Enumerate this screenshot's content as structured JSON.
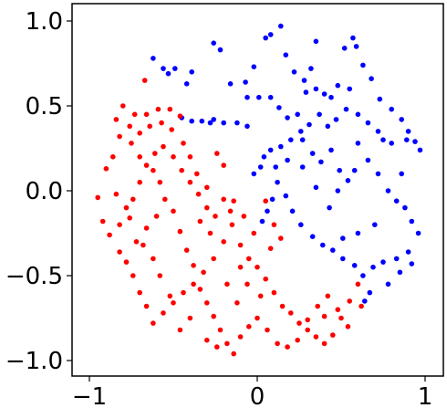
{
  "chart_data": {
    "type": "scatter",
    "title": "",
    "xlabel": "",
    "ylabel": "",
    "xlim": [
      -1.0,
      1.0
    ],
    "ylim": [
      -1.1,
      1.1
    ],
    "grid": false,
    "legend": "none",
    "x_ticks": [
      -1,
      0,
      1
    ],
    "x_tick_labels": [
      "−1",
      "0",
      "1"
    ],
    "y_ticks": [
      -1.0,
      -0.5,
      0.0,
      0.5,
      1.0
    ],
    "y_tick_labels": [
      "−1.0",
      "−0.5",
      "0.0",
      "0.5",
      "1.0"
    ],
    "series": [
      {
        "color": "#0000ff",
        "points": [
          [
            -0.62,
            0.78
          ],
          [
            -0.56,
            0.72
          ],
          [
            -0.53,
            0.69
          ],
          [
            -0.49,
            0.72
          ],
          [
            -0.42,
            0.63
          ],
          [
            -0.39,
            0.7
          ],
          [
            -0.26,
            0.87
          ],
          [
            -0.22,
            0.83
          ],
          [
            -0.16,
            0.63
          ],
          [
            -0.07,
            0.64
          ],
          [
            -0.02,
            0.73
          ],
          [
            0.05,
            0.9
          ],
          [
            0.08,
            0.92
          ],
          [
            0.14,
            0.97
          ],
          [
            0.17,
            0.8
          ],
          [
            0.22,
            0.7
          ],
          [
            0.28,
            0.65
          ],
          [
            0.32,
            0.72
          ],
          [
            0.29,
            0.58
          ],
          [
            0.35,
            0.6
          ],
          [
            0.4,
            0.57
          ],
          [
            0.44,
            0.55
          ],
          [
            0.48,
            0.62
          ],
          [
            0.52,
            0.84
          ],
          [
            0.57,
            0.9
          ],
          [
            0.59,
            0.85
          ],
          [
            0.63,
            0.74
          ],
          [
            0.68,
            0.66
          ],
          [
            0.73,
            0.54
          ],
          [
            0.8,
            0.48
          ],
          [
            0.86,
            0.42
          ],
          [
            0.9,
            0.35
          ],
          [
            0.94,
            0.29
          ],
          [
            0.97,
            0.24
          ],
          [
            0.89,
            0.3
          ],
          [
            0.8,
            0.28
          ],
          [
            0.72,
            0.35
          ],
          [
            0.66,
            0.4
          ],
          [
            0.6,
            0.45
          ],
          [
            0.53,
            0.48
          ],
          [
            0.47,
            0.42
          ],
          [
            0.42,
            0.38
          ],
          [
            0.37,
            0.45
          ],
          [
            0.31,
            0.39
          ],
          [
            0.26,
            0.35
          ],
          [
            0.2,
            0.3
          ],
          [
            0.14,
            0.26
          ],
          [
            0.08,
            0.24
          ],
          [
            0.04,
            0.2
          ],
          [
            0.02,
            0.14
          ],
          [
            -0.02,
            0.1
          ],
          [
            -0.06,
            0.38
          ],
          [
            -0.12,
            0.4
          ],
          [
            -0.2,
            0.4
          ],
          [
            -0.26,
            0.42
          ],
          [
            -0.33,
            0.41
          ],
          [
            -0.39,
            0.41
          ],
          [
            -0.06,
            0.55
          ],
          [
            0.01,
            0.55
          ],
          [
            0.08,
            0.55
          ],
          [
            0.13,
            0.49
          ],
          [
            0.18,
            0.43
          ],
          [
            0.24,
            0.45
          ],
          [
            0.27,
            0.3
          ],
          [
            0.33,
            0.22
          ],
          [
            0.38,
            0.17
          ],
          [
            0.44,
            0.24
          ],
          [
            0.49,
            0.12
          ],
          [
            0.54,
            0.06
          ],
          [
            0.58,
            0.12
          ],
          [
            0.6,
            0.28
          ],
          [
            0.66,
            0.18
          ],
          [
            0.72,
            0.1
          ],
          [
            0.78,
            0.0
          ],
          [
            0.83,
            -0.06
          ],
          [
            0.88,
            -0.1
          ],
          [
            0.92,
            -0.18
          ],
          [
            0.96,
            -0.25
          ],
          [
            0.9,
            -0.36
          ],
          [
            0.83,
            -0.4
          ],
          [
            0.75,
            -0.42
          ],
          [
            0.69,
            -0.45
          ],
          [
            0.63,
            -0.5
          ],
          [
            0.58,
            -0.44
          ],
          [
            0.51,
            -0.4
          ],
          [
            0.45,
            -0.35
          ],
          [
            0.39,
            -0.32
          ],
          [
            0.33,
            -0.27
          ],
          [
            0.26,
            -0.2
          ],
          [
            0.21,
            -0.12
          ],
          [
            0.17,
            -0.03
          ],
          [
            0.12,
            0.05
          ],
          [
            0.09,
            -0.05
          ],
          [
            0.06,
            -0.12
          ],
          [
            0.03,
            -0.18
          ],
          [
            0.67,
            -0.6
          ],
          [
            0.64,
            -0.65
          ],
          [
            0.78,
            -0.55
          ],
          [
            0.85,
            -0.48
          ],
          [
            0.92,
            -0.43
          ],
          [
            0.7,
            -0.2
          ],
          [
            0.6,
            -0.25
          ],
          [
            0.51,
            -0.28
          ],
          [
            0.43,
            -0.1
          ],
          [
            0.35,
            0.02
          ],
          [
            0.48,
            0.0
          ],
          [
            0.27,
            0.14
          ],
          [
            0.18,
            0.18
          ],
          [
            0.11,
            0.14
          ],
          [
            0.86,
            0.1
          ],
          [
            0.75,
            0.3
          ],
          [
            0.55,
            0.6
          ],
          [
            0.35,
            0.88
          ],
          [
            -0.28,
            0.4
          ],
          [
            -0.45,
            0.43
          ]
        ]
      },
      {
        "color": "#ff0000",
        "points": [
          [
            -0.67,
            0.65
          ],
          [
            -0.8,
            0.5
          ],
          [
            -0.84,
            0.42
          ],
          [
            -0.82,
            0.32
          ],
          [
            -0.76,
            0.38
          ],
          [
            -0.7,
            0.34
          ],
          [
            -0.64,
            0.38
          ],
          [
            -0.57,
            0.4
          ],
          [
            -0.51,
            0.36
          ],
          [
            -0.46,
            0.44
          ],
          [
            -0.52,
            0.48
          ],
          [
            -0.59,
            0.48
          ],
          [
            -0.66,
            0.45
          ],
          [
            -0.73,
            0.45
          ],
          [
            -0.86,
            0.2
          ],
          [
            -0.9,
            0.13
          ],
          [
            -0.95,
            -0.04
          ],
          [
            -0.92,
            -0.18
          ],
          [
            -0.88,
            -0.26
          ],
          [
            -0.82,
            -0.2
          ],
          [
            -0.78,
            -0.1
          ],
          [
            -0.74,
            -0.05
          ],
          [
            -0.7,
            0.05
          ],
          [
            -0.66,
            0.15
          ],
          [
            -0.61,
            0.22
          ],
          [
            -0.56,
            0.26
          ],
          [
            -0.5,
            0.2
          ],
          [
            -0.45,
            0.12
          ],
          [
            -0.4,
            0.05
          ],
          [
            -0.35,
            -0.02
          ],
          [
            -0.3,
            -0.1
          ],
          [
            -0.25,
            -0.15
          ],
          [
            -0.2,
            -0.05
          ],
          [
            -0.15,
            -0.2
          ],
          [
            -0.1,
            -0.32
          ],
          [
            -0.05,
            -0.4
          ],
          [
            0.0,
            -0.45
          ],
          [
            0.05,
            -0.52
          ],
          [
            0.1,
            -0.6
          ],
          [
            0.15,
            -0.68
          ],
          [
            0.2,
            -0.72
          ],
          [
            0.25,
            -0.78
          ],
          [
            0.3,
            -0.82
          ],
          [
            0.35,
            -0.86
          ],
          [
            0.4,
            -0.9
          ],
          [
            0.45,
            -0.85
          ],
          [
            0.5,
            -0.75
          ],
          [
            0.55,
            -0.65
          ],
          [
            0.6,
            -0.55
          ],
          [
            0.62,
            -0.68
          ],
          [
            0.05,
            -0.06
          ],
          [
            0.1,
            -0.2
          ],
          [
            -0.02,
            -0.25
          ],
          [
            -0.08,
            -0.15
          ],
          [
            -0.14,
            -0.06
          ],
          [
            -0.2,
            -0.3
          ],
          [
            -0.26,
            -0.4
          ],
          [
            -0.32,
            -0.48
          ],
          [
            -0.38,
            -0.55
          ],
          [
            -0.44,
            -0.6
          ],
          [
            -0.5,
            -0.66
          ],
          [
            -0.56,
            -0.72
          ],
          [
            -0.62,
            -0.78
          ],
          [
            -0.66,
            -0.68
          ],
          [
            -0.7,
            -0.6
          ],
          [
            -0.74,
            -0.5
          ],
          [
            -0.78,
            -0.42
          ],
          [
            -0.82,
            -0.36
          ],
          [
            -0.72,
            -0.3
          ],
          [
            -0.66,
            -0.22
          ],
          [
            -0.6,
            -0.15
          ],
          [
            -0.55,
            -0.05
          ],
          [
            -0.5,
            -0.12
          ],
          [
            -0.46,
            -0.24
          ],
          [
            -0.42,
            -0.35
          ],
          [
            -0.38,
            -0.44
          ],
          [
            -0.34,
            -0.58
          ],
          [
            -0.3,
            -0.66
          ],
          [
            -0.26,
            -0.74
          ],
          [
            -0.22,
            -0.82
          ],
          [
            -0.18,
            -0.9
          ],
          [
            -0.14,
            -0.96
          ],
          [
            -0.24,
            -0.92
          ],
          [
            -0.3,
            -0.88
          ],
          [
            -0.1,
            -0.86
          ],
          [
            -0.05,
            -0.8
          ],
          [
            0.0,
            -0.75
          ],
          [
            0.06,
            -0.82
          ],
          [
            0.12,
            -0.9
          ],
          [
            0.18,
            -0.92
          ],
          [
            0.24,
            -0.88
          ],
          [
            0.3,
            -0.76
          ],
          [
            0.36,
            -0.68
          ],
          [
            0.42,
            -0.62
          ],
          [
            0.48,
            -0.7
          ],
          [
            0.54,
            -0.8
          ],
          [
            0.4,
            -0.74
          ],
          [
            -0.4,
            -0.75
          ],
          [
            -0.46,
            -0.82
          ],
          [
            -0.52,
            -0.62
          ],
          [
            -0.58,
            -0.5
          ],
          [
            -0.62,
            -0.4
          ],
          [
            -0.68,
            -0.32
          ],
          [
            -0.58,
            0.05
          ],
          [
            -0.62,
            0.12
          ],
          [
            -0.7,
            0.2
          ],
          [
            -0.75,
            0.28
          ],
          [
            -0.44,
            0.28
          ],
          [
            -0.4,
            0.2
          ],
          [
            -0.36,
            0.1
          ],
          [
            -0.3,
            0.02
          ],
          [
            -0.24,
            0.22
          ],
          [
            -0.2,
            0.15
          ],
          [
            -0.16,
            -0.12
          ],
          [
            -0.1,
            -0.45
          ],
          [
            -0.06,
            -0.55
          ],
          [
            0.02,
            -0.62
          ],
          [
            0.08,
            -0.34
          ],
          [
            0.14,
            -0.28
          ],
          [
            -0.12,
            -0.66
          ],
          [
            -0.18,
            -0.55
          ],
          [
            -0.28,
            -0.25
          ],
          [
            -0.34,
            -0.18
          ],
          [
            -0.84,
            -0.02
          ],
          [
            -0.76,
            -0.16
          ]
        ]
      }
    ]
  }
}
